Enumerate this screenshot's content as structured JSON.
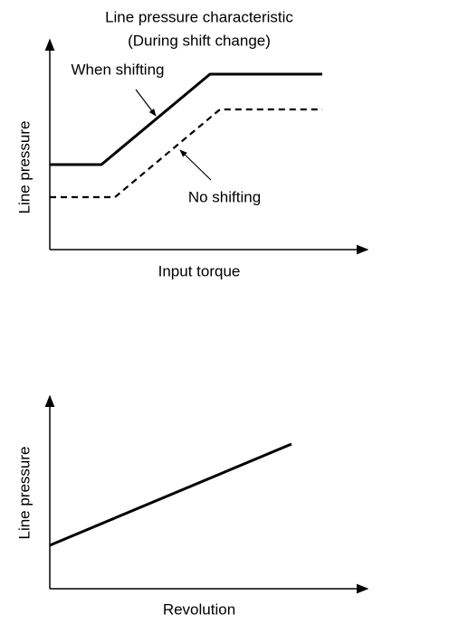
{
  "title": {
    "line1": "Line pressure characteristic",
    "line2": "(During shift change)"
  },
  "top_diagram": {
    "y_label": "Line pressure",
    "x_label": "Input torque",
    "annotations": [
      "When shifting",
      "No shifting"
    ]
  },
  "bottom_diagram": {
    "y_label": "Line pressure",
    "x_label": "Revolution"
  }
}
